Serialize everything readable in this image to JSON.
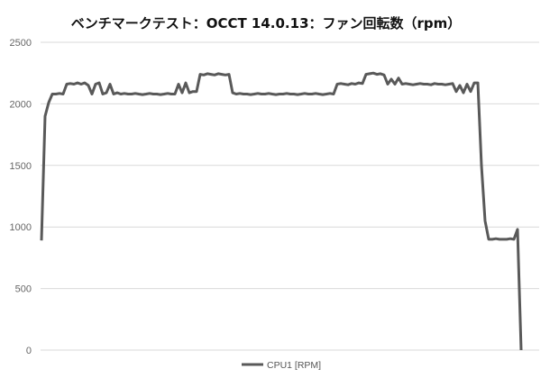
{
  "chart_data": {
    "type": "line",
    "title": "ベンチマークテスト：OCCT 14.0.13：ファン回転数（rpm）",
    "xlabel": "",
    "ylabel": "",
    "ylim": [
      0,
      2500
    ],
    "yticks": [
      "0",
      "500",
      "1000",
      "1500",
      "2000",
      "2500"
    ],
    "grid": true,
    "legend_placement": "bottom",
    "series": [
      {
        "name": "CPU1 [RPM]",
        "color": "#595959",
        "values": [
          890,
          1900,
          2010,
          2080,
          2080,
          2085,
          2080,
          2160,
          2165,
          2160,
          2170,
          2160,
          2170,
          2150,
          2080,
          2160,
          2170,
          2080,
          2090,
          2160,
          2080,
          2090,
          2080,
          2085,
          2080,
          2080,
          2085,
          2080,
          2075,
          2080,
          2085,
          2080,
          2080,
          2075,
          2080,
          2085,
          2080,
          2080,
          2160,
          2090,
          2170,
          2090,
          2100,
          2100,
          2240,
          2235,
          2245,
          2240,
          2235,
          2245,
          2240,
          2235,
          2240,
          2090,
          2080,
          2085,
          2080,
          2080,
          2075,
          2080,
          2085,
          2080,
          2080,
          2085,
          2080,
          2075,
          2080,
          2080,
          2085,
          2080,
          2080,
          2075,
          2080,
          2085,
          2080,
          2080,
          2085,
          2080,
          2075,
          2080,
          2085,
          2080,
          2160,
          2165,
          2160,
          2155,
          2165,
          2160,
          2170,
          2165,
          2240,
          2245,
          2250,
          2240,
          2245,
          2235,
          2160,
          2200,
          2160,
          2210,
          2160,
          2165,
          2160,
          2155,
          2160,
          2165,
          2160,
          2160,
          2155,
          2165,
          2160,
          2160,
          2155,
          2160,
          2165,
          2100,
          2150,
          2090,
          2160,
          2100,
          2170,
          2170,
          1500,
          1050,
          900,
          900,
          905,
          900,
          900,
          900,
          905,
          900,
          980,
          0
        ]
      }
    ]
  }
}
